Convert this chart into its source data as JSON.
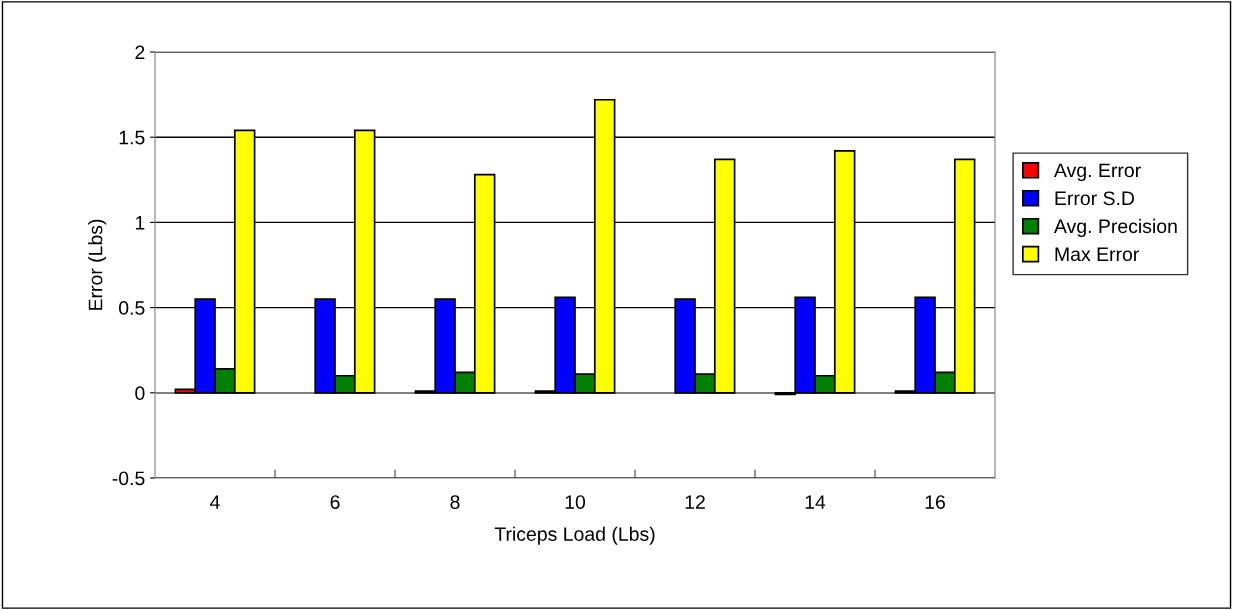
{
  "chart_data": {
    "type": "bar",
    "xlabel": "Triceps Load (Lbs)",
    "ylabel": "Error (Lbs)",
    "categories": [
      "4",
      "6",
      "8",
      "10",
      "12",
      "14",
      "16"
    ],
    "series": [
      {
        "name": "Avg. Error",
        "color": "#ff0000",
        "values": [
          0.02,
          null,
          0.01,
          0.01,
          null,
          -0.01,
          0.01
        ]
      },
      {
        "name": "Error S.D",
        "color": "#0000ff",
        "values": [
          0.55,
          0.55,
          0.55,
          0.56,
          0.55,
          0.56,
          0.56
        ]
      },
      {
        "name": "Avg. Precision",
        "color": "#008000",
        "values": [
          0.14,
          0.1,
          0.12,
          0.11,
          0.11,
          0.1,
          0.12
        ]
      },
      {
        "name": "Max Error",
        "color": "#ffff00",
        "values": [
          1.54,
          1.54,
          1.28,
          1.72,
          1.37,
          1.42,
          1.37
        ]
      }
    ],
    "ylim": [
      -0.5,
      2
    ],
    "yticks": [
      -0.5,
      0,
      0.5,
      1,
      1.5,
      2
    ],
    "grid": "y",
    "legend": "right"
  }
}
